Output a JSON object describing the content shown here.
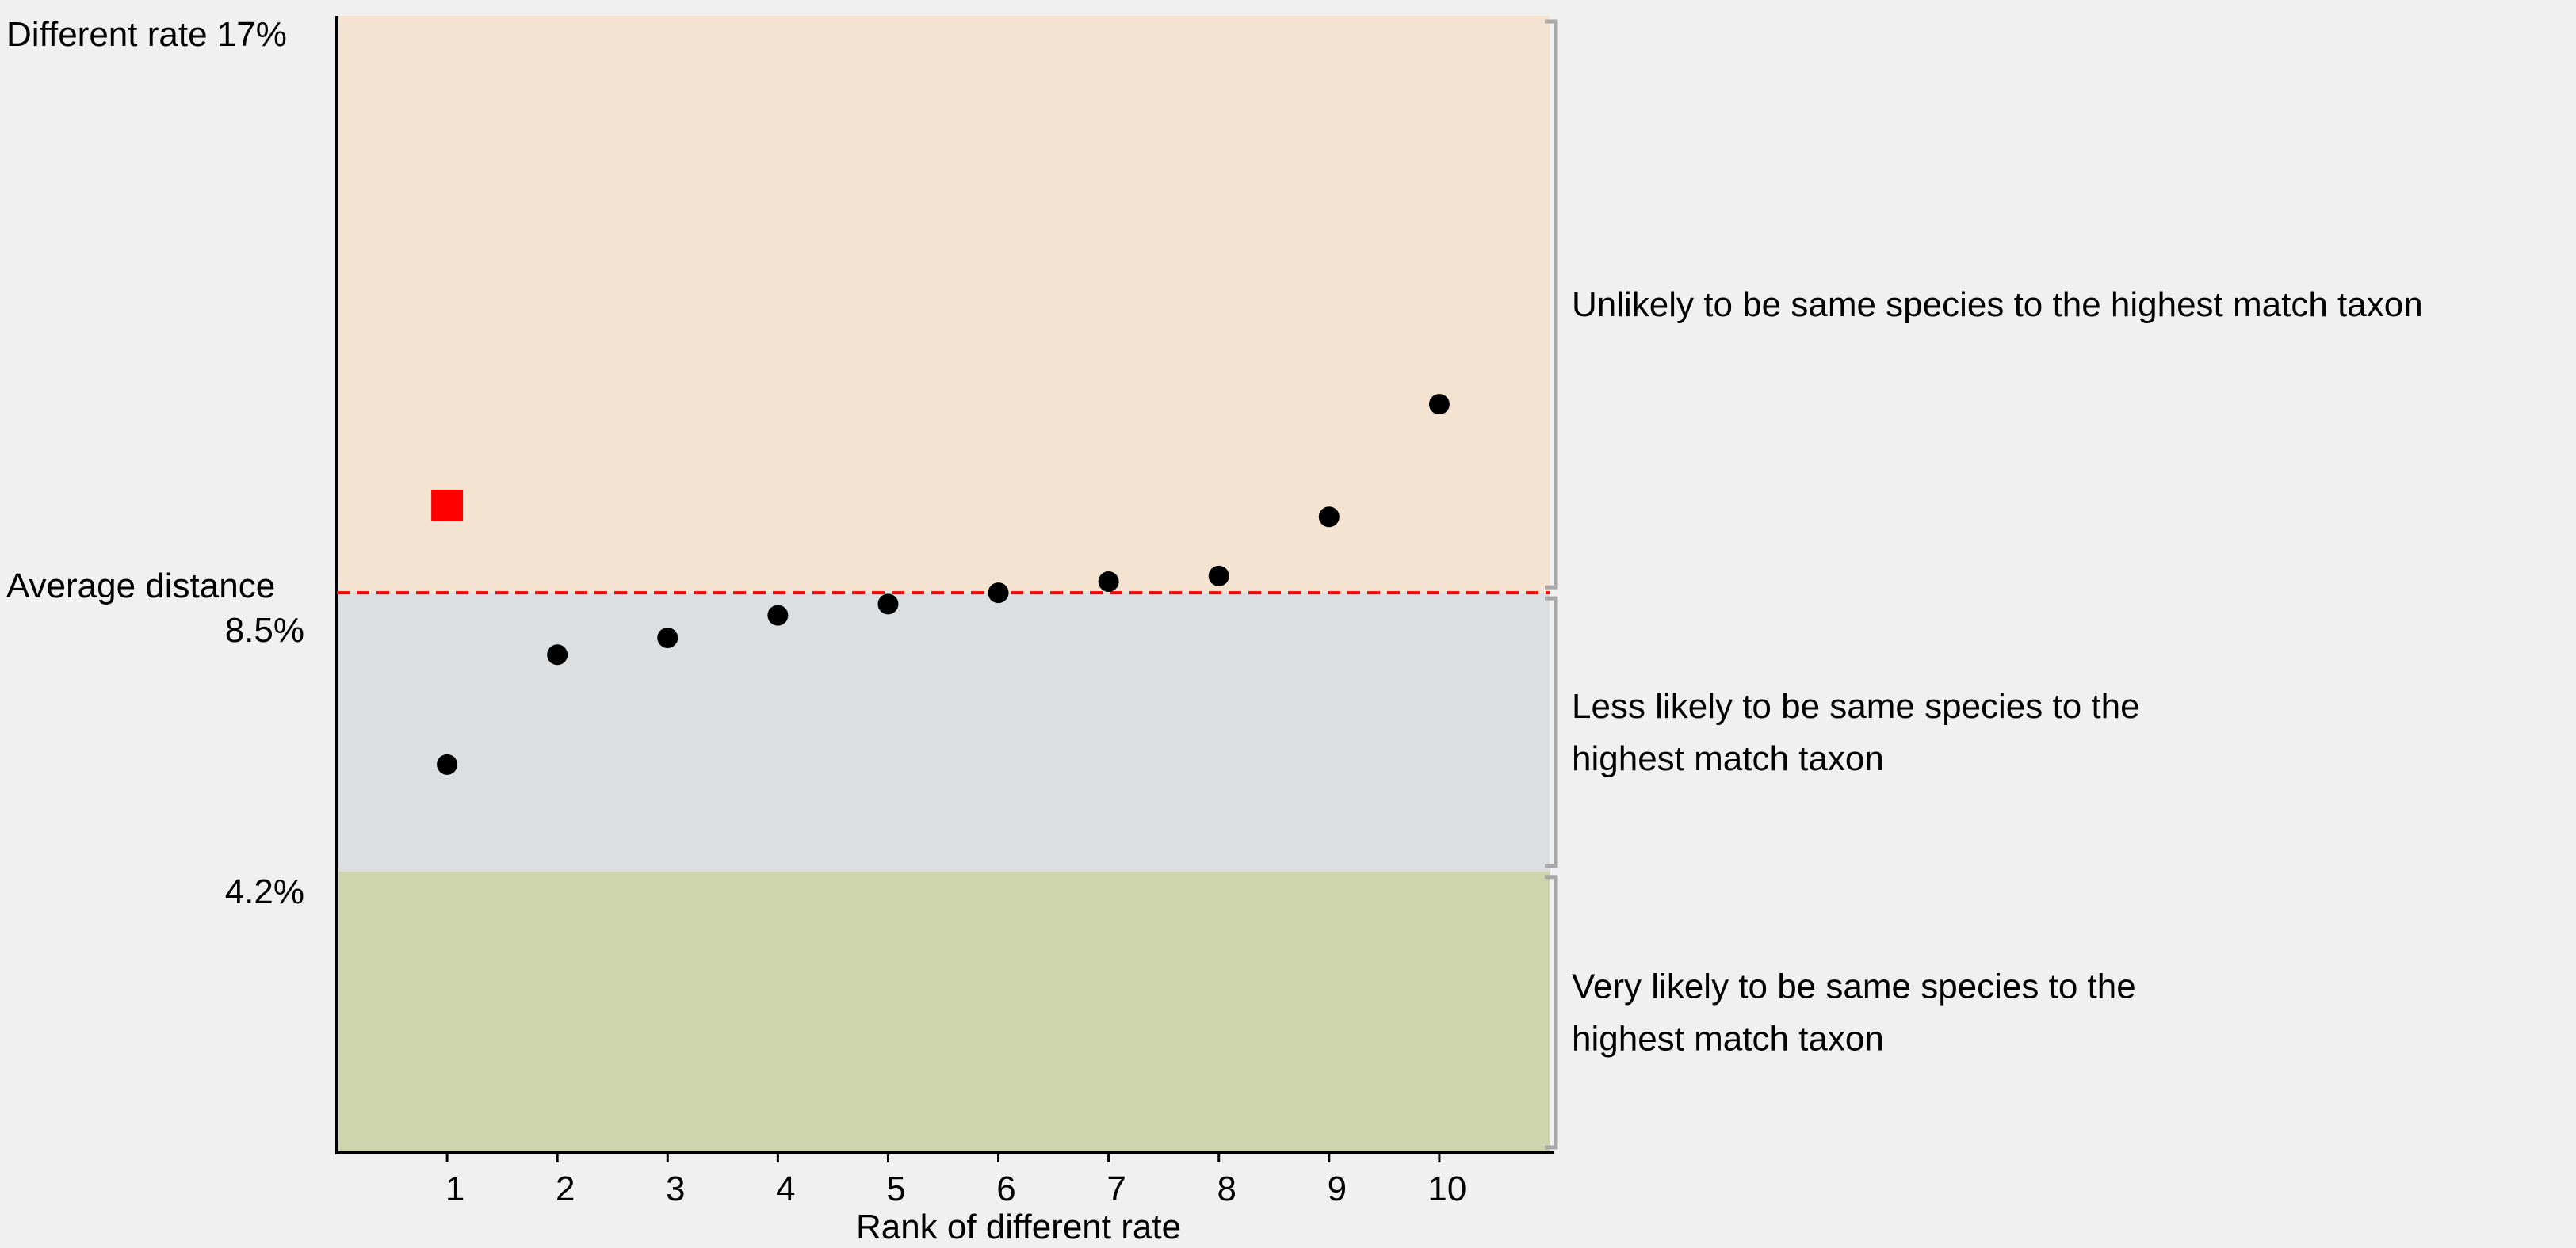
{
  "chart_data": {
    "type": "scatter",
    "title": "",
    "xlabel": "Rank of different rate",
    "ylabel": "",
    "x": [
      1,
      2,
      3,
      4,
      5,
      6,
      7,
      8,
      9,
      10
    ],
    "y": [
      6.9,
      8.85,
      9.15,
      9.55,
      9.75,
      9.95,
      10.15,
      10.25,
      11.3,
      13.3
    ],
    "highlight_point": {
      "x": 1,
      "y": 11.5,
      "color": "#ff0000",
      "marker": "square"
    },
    "xticks": [
      "1",
      "2",
      "3",
      "4",
      "5",
      "6",
      "7",
      "8",
      "9",
      "10"
    ],
    "xlim": [
      0,
      11
    ],
    "ylim": [
      0,
      20.2
    ],
    "y_label_top": "Different rate 17%",
    "y_label_average": "Average distance",
    "average_line_y": 9.95,
    "average_line_color": "#ff0000",
    "ytick_85": "8.5%",
    "ytick_42": "4.2%",
    "zones": [
      {
        "from": 9.95,
        "to": 20.2,
        "color": "#f5e3d2",
        "label_lines": [
          "Unlikely to be same species to the highest match taxon"
        ]
      },
      {
        "from": 5.0,
        "to": 9.95,
        "color": "#dcdfe2",
        "label_lines": [
          "Less likely to be same species to the",
          "highest match taxon"
        ]
      },
      {
        "from": 0,
        "to": 5.0,
        "color": "#ced4ae",
        "label_lines": [
          "Very likely to be same species to the",
          "highest match taxon"
        ]
      }
    ],
    "point_color": "#000000",
    "grid": false,
    "legend": "none"
  }
}
